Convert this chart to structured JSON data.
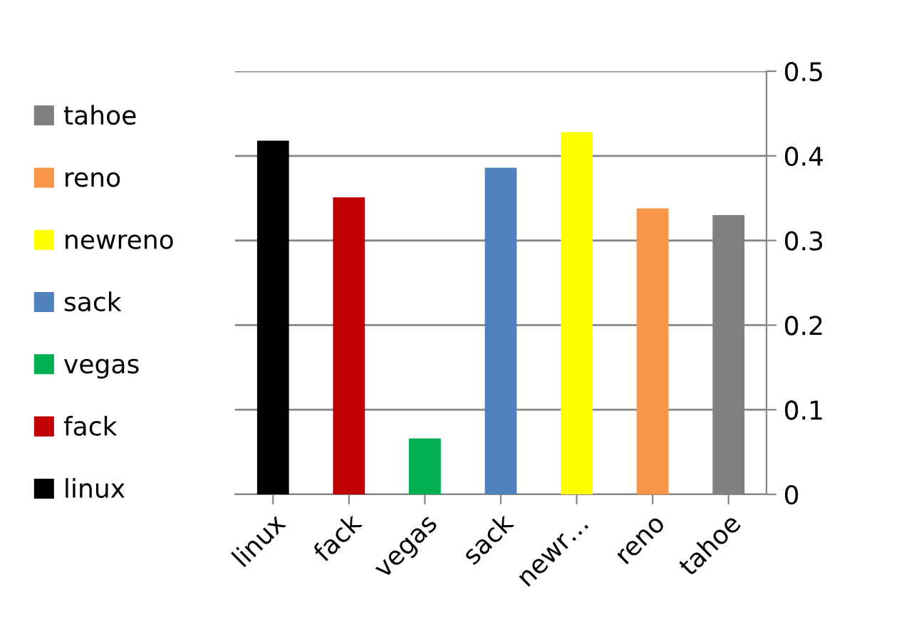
{
  "chart_data": {
    "type": "bar",
    "categories": [
      "linux",
      "fack",
      "vegas",
      "sack",
      "newr…",
      "reno",
      "tahoe"
    ],
    "series": [
      {
        "name": "linux",
        "color": "#000000",
        "values": [
          0.418,
          null,
          null,
          null,
          null,
          null,
          null
        ]
      },
      {
        "name": "fack",
        "color": "#c00000",
        "values": [
          null,
          0.351,
          null,
          null,
          null,
          null,
          null
        ]
      },
      {
        "name": "vegas",
        "color": "#00b050",
        "values": [
          null,
          null,
          0.066,
          null,
          null,
          null,
          null
        ]
      },
      {
        "name": "sack",
        "color": "#4f81bd",
        "values": [
          null,
          null,
          null,
          0.386,
          null,
          null,
          null
        ]
      },
      {
        "name": "newreno",
        "color": "#ffff00",
        "values": [
          null,
          null,
          null,
          null,
          0.428,
          null,
          null
        ]
      },
      {
        "name": "reno",
        "color": "#f79646",
        "values": [
          null,
          null,
          null,
          null,
          null,
          0.338,
          null
        ]
      },
      {
        "name": "tahoe",
        "color": "#808080",
        "values": [
          null,
          null,
          null,
          null,
          null,
          null,
          0.33
        ]
      }
    ],
    "ylim": [
      0,
      0.5
    ],
    "yticks": [
      0,
      0.1,
      0.2,
      0.3,
      0.4,
      0.5
    ],
    "grid": "y",
    "legend": "left"
  }
}
